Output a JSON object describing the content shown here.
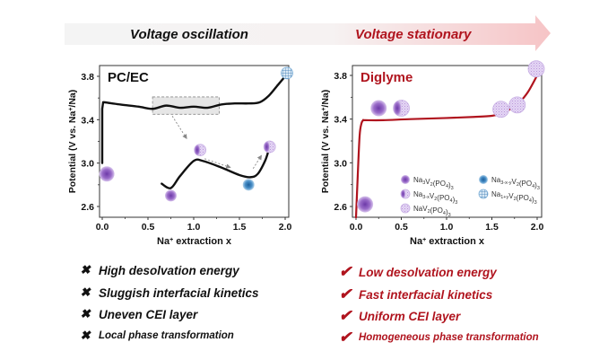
{
  "banner": {
    "left_label": "Voltage oscillation",
    "right_label": "Voltage stationary",
    "arrow_color_start": "#f4f4f4",
    "arrow_color_end": "#f6c9cb"
  },
  "colors": {
    "pc_ec_curve": "#111111",
    "diglyme_curve": "#b0141e",
    "accent_red": "#b0141e",
    "phase_purple": "#8d5bbf",
    "phase_blue": "#3a88c4"
  },
  "chart_data": [
    {
      "type": "line",
      "title": "PC/EC",
      "xlabel": "Na+ extraction x",
      "ylabel": "Potential (V vs. Na+/Na)",
      "xlim": [
        -0.08,
        2.05
      ],
      "ylim": [
        2.5,
        3.9
      ],
      "xticks": [
        "0.0",
        "0.5",
        "1.0",
        "1.5",
        "2.0"
      ],
      "yticks": [
        "2.6",
        "3.0",
        "3.4",
        "3.8"
      ],
      "series": [
        {
          "name": "PC/EC charge curve",
          "x": [
            0.0,
            0.0,
            0.01,
            0.03,
            0.2,
            0.4,
            0.55,
            0.7,
            0.85,
            1.0,
            1.15,
            1.3,
            1.45,
            1.6,
            1.72,
            1.82,
            1.92,
            2.0
          ],
          "y": [
            3.0,
            3.5,
            3.56,
            3.56,
            3.54,
            3.52,
            3.5,
            3.53,
            3.51,
            3.52,
            3.51,
            3.54,
            3.55,
            3.55,
            3.56,
            3.62,
            3.72,
            3.8
          ]
        },
        {
          "name": "Zoomed inset curve",
          "x": [
            0.65,
            0.75,
            0.85,
            1.0,
            1.1,
            1.3,
            1.5,
            1.62,
            1.7,
            1.78,
            1.82
          ],
          "y": [
            2.81,
            2.77,
            2.88,
            3.02,
            3.02,
            2.96,
            2.89,
            2.87,
            2.9,
            3.02,
            3.12
          ]
        }
      ],
      "annotations": [
        {
          "type": "inset_box",
          "x_range": [
            0.55,
            1.28
          ],
          "y_range": [
            3.45,
            3.61
          ]
        },
        {
          "type": "marker",
          "phase": "Na3V2(PO4)3",
          "x": 0.05,
          "y": 2.9,
          "size": "large"
        },
        {
          "type": "marker",
          "phase": "Na3V2(PO4)3",
          "x": 0.75,
          "y": 2.7,
          "size": "small"
        },
        {
          "type": "marker",
          "phase": "Na3-xV2(PO4)3",
          "x": 1.07,
          "y": 3.12,
          "size": "small"
        },
        {
          "type": "marker",
          "phase": "Na3-x-yV2(PO4)3",
          "x": 1.6,
          "y": 2.8,
          "size": "small"
        },
        {
          "type": "marker",
          "phase": "Na3-xV2(PO4)3",
          "x": 1.83,
          "y": 3.15,
          "size": "small"
        },
        {
          "type": "marker",
          "phase": "Na1+yV2(PO4)3",
          "x": 2.02,
          "y": 3.83,
          "size": "small"
        }
      ]
    },
    {
      "type": "line",
      "title": "Diglyme",
      "xlabel": "Na+ extraction x",
      "ylabel": "Potential (V vs. Na+/Na)",
      "xlim": [
        -0.05,
        2.05
      ],
      "ylim": [
        2.5,
        3.9
      ],
      "xticks": [
        "0.0",
        "0.5",
        "1.0",
        "1.5",
        "2.0"
      ],
      "yticks": [
        "2.6",
        "3.0",
        "3.4",
        "3.8"
      ],
      "series": [
        {
          "name": "Diglyme charge curve",
          "x": [
            0.0,
            0.02,
            0.04,
            0.06,
            0.08,
            0.1,
            0.3,
            0.6,
            1.0,
            1.3,
            1.5,
            1.6,
            1.7,
            1.8,
            1.9,
            2.0
          ],
          "y": [
            2.5,
            2.9,
            3.25,
            3.36,
            3.39,
            3.39,
            3.39,
            3.4,
            3.41,
            3.42,
            3.43,
            3.45,
            3.49,
            3.55,
            3.65,
            3.8
          ]
        }
      ],
      "annotations": [
        {
          "type": "marker",
          "phase": "Na3V2(PO4)3",
          "x": 0.1,
          "y": 2.62
        },
        {
          "type": "marker",
          "phase": "Na3V2(PO4)3",
          "x": 0.25,
          "y": 3.5
        },
        {
          "type": "marker",
          "phase": "Na3-xV2(PO4)3",
          "x": 0.5,
          "y": 3.5
        },
        {
          "type": "marker",
          "phase": "NaV2(PO4)3",
          "x": 1.6,
          "y": 3.49
        },
        {
          "type": "marker",
          "phase": "NaV2(PO4)3",
          "x": 1.78,
          "y": 3.53
        },
        {
          "type": "marker",
          "phase": "NaV2(PO4)3",
          "x": 1.99,
          "y": 3.86
        }
      ],
      "legend": {
        "placement": "bottom-right",
        "entries": [
          {
            "label_main": "Na",
            "sub1": "3",
            "mid": "V",
            "sub2": "2",
            "paren": "(PO",
            "sub3": "4",
            "close": ")",
            "sub4": "3",
            "phase": "Na3V2(PO4)3",
            "style": "solid-purple"
          },
          {
            "label_main": "Na",
            "sub1": "3-x-y",
            "mid": "V",
            "sub2": "2",
            "paren": "(PO",
            "sub3": "4",
            "close": ")",
            "sub4": "3",
            "phase": "Na3-x-yV2(PO4)3",
            "style": "solid-blue"
          },
          {
            "label_main": "Na",
            "sub1": "3-x",
            "mid": "V",
            "sub2": "2",
            "paren": "(PO",
            "sub3": "4",
            "close": ")",
            "sub4": "3",
            "phase": "Na3-xV2(PO4)3",
            "style": "half-purple"
          },
          {
            "label_main": "Na",
            "sub1": "1+y",
            "mid": "V",
            "sub2": "2",
            "paren": "(PO",
            "sub3": "4",
            "close": ")",
            "sub4": "3",
            "phase": "Na1+yV2(PO4)3",
            "style": "grid-blue"
          },
          {
            "label_main": "Na",
            "sub1": "",
            "mid": "V",
            "sub2": "2",
            "paren": "(PO",
            "sub3": "4",
            "close": ")",
            "sub4": "3",
            "phase": "NaV2(PO4)3",
            "style": "dotted-light"
          }
        ]
      }
    }
  ],
  "left_list": {
    "icon": "cross-icon",
    "items": [
      "High desolvation energy",
      "Sluggish interfacial kinetics",
      "Uneven CEI layer",
      "Local phase transformation"
    ]
  },
  "right_list": {
    "icon": "check-icon",
    "items": [
      "Low desolvation energy",
      "Fast interfacial kinetics",
      "Uniform CEI layer",
      "Homogeneous phase transformation"
    ]
  }
}
